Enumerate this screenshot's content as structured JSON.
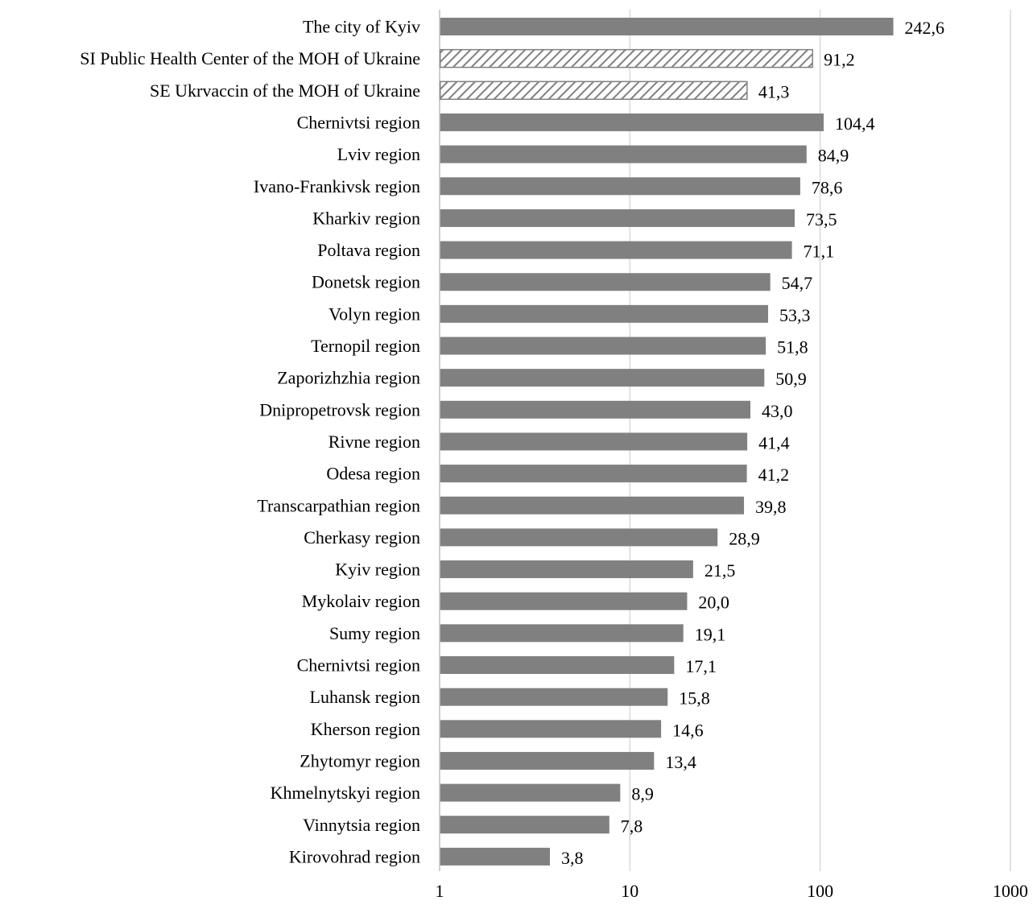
{
  "chart_data": {
    "type": "bar",
    "orientation": "horizontal",
    "x_scale": "log",
    "xlim": [
      1,
      1000
    ],
    "x_ticks": [
      "1",
      "10",
      "100",
      "1000"
    ],
    "grid": true,
    "title": "",
    "xlabel": "",
    "ylabel": "",
    "bar_color": "#808080",
    "hatched_color": "#808080",
    "categories": [
      "The city of Kyiv",
      "SI Public Health Center of the MOH of Ukraine",
      "SE Ukrvaccin of the MOH of Ukraine",
      "Chernivtsi region",
      "Lviv region",
      "Ivano-Frankivsk region",
      "Kharkiv region",
      "Poltava region",
      "Donetsk region",
      "Volyn region",
      "Ternopil region",
      "Zaporizhzhia region",
      "Dnipropetrovsk region",
      "Rivne region",
      "Odesa region",
      "Transcarpathian region",
      "Cherkasy region",
      "Kyiv region",
      "Mykolaiv region",
      "Sumy region",
      "Chernivtsi region",
      "Luhansk region",
      "Kherson region",
      "Zhytomyr region",
      "Khmelnytskyi region",
      "Vinnytsia region",
      "Kirovohrad region"
    ],
    "values": [
      242.6,
      91.2,
      41.3,
      104.4,
      84.9,
      78.6,
      73.5,
      71.1,
      54.7,
      53.3,
      51.8,
      50.9,
      43.0,
      41.4,
      41.2,
      39.8,
      28.9,
      21.5,
      20.0,
      19.1,
      17.1,
      15.8,
      14.6,
      13.4,
      8.9,
      7.8,
      3.8
    ],
    "value_labels": [
      "242,6",
      "91,2",
      "41,3",
      "104,4",
      "84,9",
      "78,6",
      "73,5",
      "71,1",
      "54,7",
      "53,3",
      "51,8",
      "50,9",
      "43,0",
      "41,4",
      "41,2",
      "39,8",
      "28,9",
      "21,5",
      "20,0",
      "19,1",
      "17,1",
      "15,8",
      "14,6",
      "13,4",
      "8,9",
      "7,8",
      "3,8"
    ],
    "hatched": [
      false,
      true,
      true,
      false,
      false,
      false,
      false,
      false,
      false,
      false,
      false,
      false,
      false,
      false,
      false,
      false,
      false,
      false,
      false,
      false,
      false,
      false,
      false,
      false,
      false,
      false,
      false
    ]
  }
}
